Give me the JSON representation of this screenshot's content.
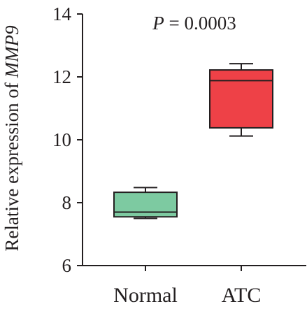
{
  "chart_data": {
    "type": "box",
    "ylabel_prefix": "Relative expression of ",
    "ylabel_gene": "MMP9",
    "annotation_prefix": "P",
    "annotation_suffix": " = 0.0003",
    "ylim": [
      6,
      14
    ],
    "yticks": [
      "6",
      "8",
      "10",
      "12",
      "14"
    ],
    "grid": false,
    "categories": [
      "Normal",
      "ATC"
    ],
    "boxes": [
      {
        "category": "Normal",
        "color": "#7dcaa1",
        "min": 7.5,
        "q1": 7.55,
        "median": 7.7,
        "q3": 8.33,
        "max": 8.48
      },
      {
        "category": "ATC",
        "color": "#ee4147",
        "min": 10.12,
        "q1": 10.38,
        "median": 11.88,
        "q3": 12.22,
        "max": 12.42
      }
    ]
  }
}
